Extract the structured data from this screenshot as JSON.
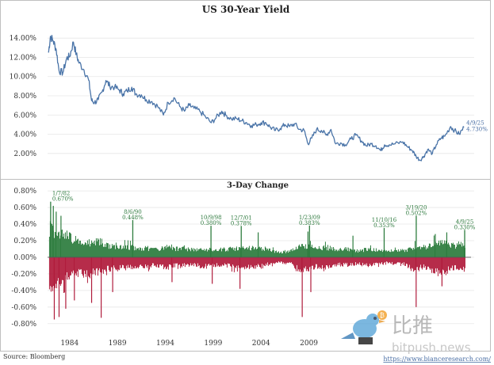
{
  "chart_data": [
    {
      "type": "line",
      "title": "US 30-Year Yield",
      "y_ticks": [
        "14.00%",
        "12.00%",
        "10.00%",
        "8.00%",
        "6.00%",
        "4.00%",
        "2.00%"
      ],
      "ylim": [
        0.5,
        15.5
      ],
      "xlim": [
        1981.7,
        2025.6
      ],
      "series": [
        {
          "color": "#4a74a8",
          "x": [
            1981.8,
            1982.0,
            1982.3,
            1982.6,
            1982.9,
            1983.3,
            1983.7,
            1984.0,
            1984.4,
            1984.7,
            1985.0,
            1985.5,
            1986.0,
            1986.3,
            1986.6,
            1987.0,
            1987.4,
            1987.8,
            1988.2,
            1988.7,
            1989.2,
            1989.6,
            1990.0,
            1990.5,
            1990.9,
            1991.5,
            1992.0,
            1992.6,
            1993.2,
            1993.8,
            1994.3,
            1994.9,
            1995.5,
            1996.0,
            1996.5,
            1997.0,
            1997.6,
            1998.2,
            1998.8,
            1999.3,
            1999.9,
            2000.3,
            2000.9,
            2001.5,
            2002.0,
            2002.5,
            2003.0,
            2003.5,
            2004.0,
            2004.5,
            2005.0,
            2005.5,
            2006.0,
            2006.5,
            2007.0,
            2007.5,
            2008.0,
            2008.5,
            2008.9,
            2009.3,
            2009.8,
            2010.3,
            2010.8,
            2011.3,
            2011.8,
            2012.3,
            2012.8,
            2013.4,
            2013.9,
            2014.5,
            2015.0,
            2015.5,
            2016.0,
            2016.5,
            2016.9,
            2017.4,
            2018.0,
            2018.8,
            2019.3,
            2019.8,
            2020.2,
            2020.6,
            2021.0,
            2021.4,
            2021.9,
            2022.3,
            2022.8,
            2023.2,
            2023.8,
            2024.2,
            2024.7,
            2025.2
          ],
          "y": [
            12.5,
            14.2,
            13.7,
            12.8,
            10.6,
            10.4,
            11.9,
            12.1,
            13.6,
            12.3,
            11.4,
            10.7,
            9.6,
            7.5,
            7.3,
            7.6,
            8.4,
            9.6,
            9.0,
            8.9,
            8.6,
            8.2,
            8.5,
            8.9,
            8.2,
            8.1,
            7.6,
            7.4,
            6.9,
            6.0,
            7.3,
            7.8,
            6.9,
            6.4,
            7.0,
            6.7,
            6.4,
            5.8,
            5.2,
            5.7,
            6.4,
            6.0,
            5.6,
            5.6,
            5.4,
            5.2,
            4.9,
            5.0,
            5.2,
            5.2,
            4.7,
            4.4,
            4.6,
            5.0,
            4.8,
            5.1,
            4.5,
            4.4,
            3.0,
            3.6,
            4.5,
            4.4,
            3.9,
            4.5,
            3.0,
            3.1,
            2.9,
            3.5,
            3.9,
            3.3,
            2.8,
            3.0,
            2.8,
            2.3,
            2.9,
            2.9,
            3.0,
            3.2,
            2.7,
            2.3,
            1.7,
            1.3,
            1.7,
            2.4,
            2.0,
            2.9,
            3.6,
            3.8,
            4.8,
            4.4,
            4.0,
            4.73
          ]
        }
      ],
      "end_annotation": {
        "date": "4/9/25",
        "value": "4.730%"
      }
    },
    {
      "type": "bar",
      "title": "3-Day Change",
      "y_ticks": [
        "0.80%",
        "0.60%",
        "0.40%",
        "0.20%",
        "0.00%",
        "-0.20%",
        "-0.40%",
        "-0.60%",
        "-0.80%"
      ],
      "ylim": [
        -0.85,
        0.82
      ],
      "x_tick_labels": [
        "1984",
        "1989",
        "1994",
        "1999",
        "2004",
        "2009"
      ],
      "x_tick_values": [
        1984,
        1989,
        1994,
        1999,
        2004,
        2009
      ],
      "positive_color": "#2e7d3f",
      "negative_color": "#b01c3c",
      "bands": {
        "x": [
          1982,
          1983,
          1984,
          1985,
          1986,
          1987,
          1988,
          1989,
          1990,
          1991,
          1992,
          1993,
          1994,
          1995,
          1996,
          1997,
          1998,
          1999,
          2000,
          2001,
          2002,
          2003,
          2004,
          2005,
          2006,
          2007,
          2008,
          2009,
          2010,
          2011,
          2012,
          2013,
          2014,
          2015,
          2016,
          2017,
          2018,
          2019,
          2020,
          2021,
          2022,
          2023,
          2024,
          2025
        ],
        "pos": [
          0.45,
          0.38,
          0.3,
          0.24,
          0.22,
          0.26,
          0.18,
          0.16,
          0.17,
          0.14,
          0.14,
          0.12,
          0.17,
          0.13,
          0.13,
          0.11,
          0.13,
          0.12,
          0.12,
          0.13,
          0.14,
          0.15,
          0.14,
          0.1,
          0.08,
          0.09,
          0.16,
          0.17,
          0.14,
          0.15,
          0.11,
          0.13,
          0.1,
          0.12,
          0.11,
          0.09,
          0.1,
          0.1,
          0.16,
          0.14,
          0.2,
          0.23,
          0.18,
          0.2
        ],
        "neg": [
          -0.42,
          -0.38,
          -0.3,
          -0.25,
          -0.26,
          -0.22,
          -0.18,
          -0.17,
          -0.16,
          -0.14,
          -0.14,
          -0.12,
          -0.16,
          -0.13,
          -0.12,
          -0.11,
          -0.15,
          -0.12,
          -0.12,
          -0.14,
          -0.15,
          -0.15,
          -0.13,
          -0.1,
          -0.08,
          -0.09,
          -0.19,
          -0.17,
          -0.14,
          -0.17,
          -0.11,
          -0.12,
          -0.1,
          -0.12,
          -0.11,
          -0.09,
          -0.1,
          -0.11,
          -0.2,
          -0.14,
          -0.2,
          -0.22,
          -0.17,
          -0.18
        ]
      },
      "spikes": [
        {
          "x": 1982.3,
          "y": 0.62
        },
        {
          "x": 1982.6,
          "y": 0.55
        },
        {
          "x": 1983.1,
          "y": 0.5
        },
        {
          "x": 1982.4,
          "y": -0.75
        },
        {
          "x": 1982.9,
          "y": -0.72
        },
        {
          "x": 1983.6,
          "y": -0.62
        },
        {
          "x": 1984.5,
          "y": -0.52
        },
        {
          "x": 1986.3,
          "y": -0.55
        },
        {
          "x": 1987.3,
          "y": -0.73
        },
        {
          "x": 1988.5,
          "y": -0.42
        },
        {
          "x": 1994.7,
          "y": -0.3
        },
        {
          "x": 1998.9,
          "y": -0.32
        },
        {
          "x": 2001.8,
          "y": -0.38
        },
        {
          "x": 2008.3,
          "y": -0.72
        },
        {
          "x": 2009.2,
          "y": -0.42
        },
        {
          "x": 2020.2,
          "y": -0.6
        },
        {
          "x": 2022.9,
          "y": -0.35
        },
        {
          "x": 2003.7,
          "y": 0.3
        },
        {
          "x": 2008.9,
          "y": 0.31
        },
        {
          "x": 2013.6,
          "y": 0.26
        },
        {
          "x": 2022.2,
          "y": 0.28
        },
        {
          "x": 2023.4,
          "y": 0.3
        }
      ],
      "annotations": [
        {
          "date": "1/7/82",
          "value": "0.670%",
          "x": 1982.02,
          "y": 0.67
        },
        {
          "date": "8/6/90",
          "value": "0.448%",
          "x": 1990.6,
          "y": 0.448
        },
        {
          "date": "10/9/98",
          "value": "0.380%",
          "x": 1998.77,
          "y": 0.38
        },
        {
          "date": "12/7/01",
          "value": "0.378%",
          "x": 2001.93,
          "y": 0.378
        },
        {
          "date": "1/23/09",
          "value": "0.383%",
          "x": 2009.06,
          "y": 0.383
        },
        {
          "date": "11/10/16",
          "value": "0.353%",
          "x": 2016.86,
          "y": 0.353
        },
        {
          "date": "3/19/20",
          "value": "0.502%",
          "x": 2020.21,
          "y": 0.502
        },
        {
          "date": "4/9/25",
          "value": "0.330%",
          "x": 2025.27,
          "y": 0.33
        }
      ]
    }
  ],
  "source": "Source: Bloomberg",
  "link": "https://www.bianceresearch.com/",
  "watermark": {
    "cn": "比推",
    "en": "bitpush.news"
  }
}
